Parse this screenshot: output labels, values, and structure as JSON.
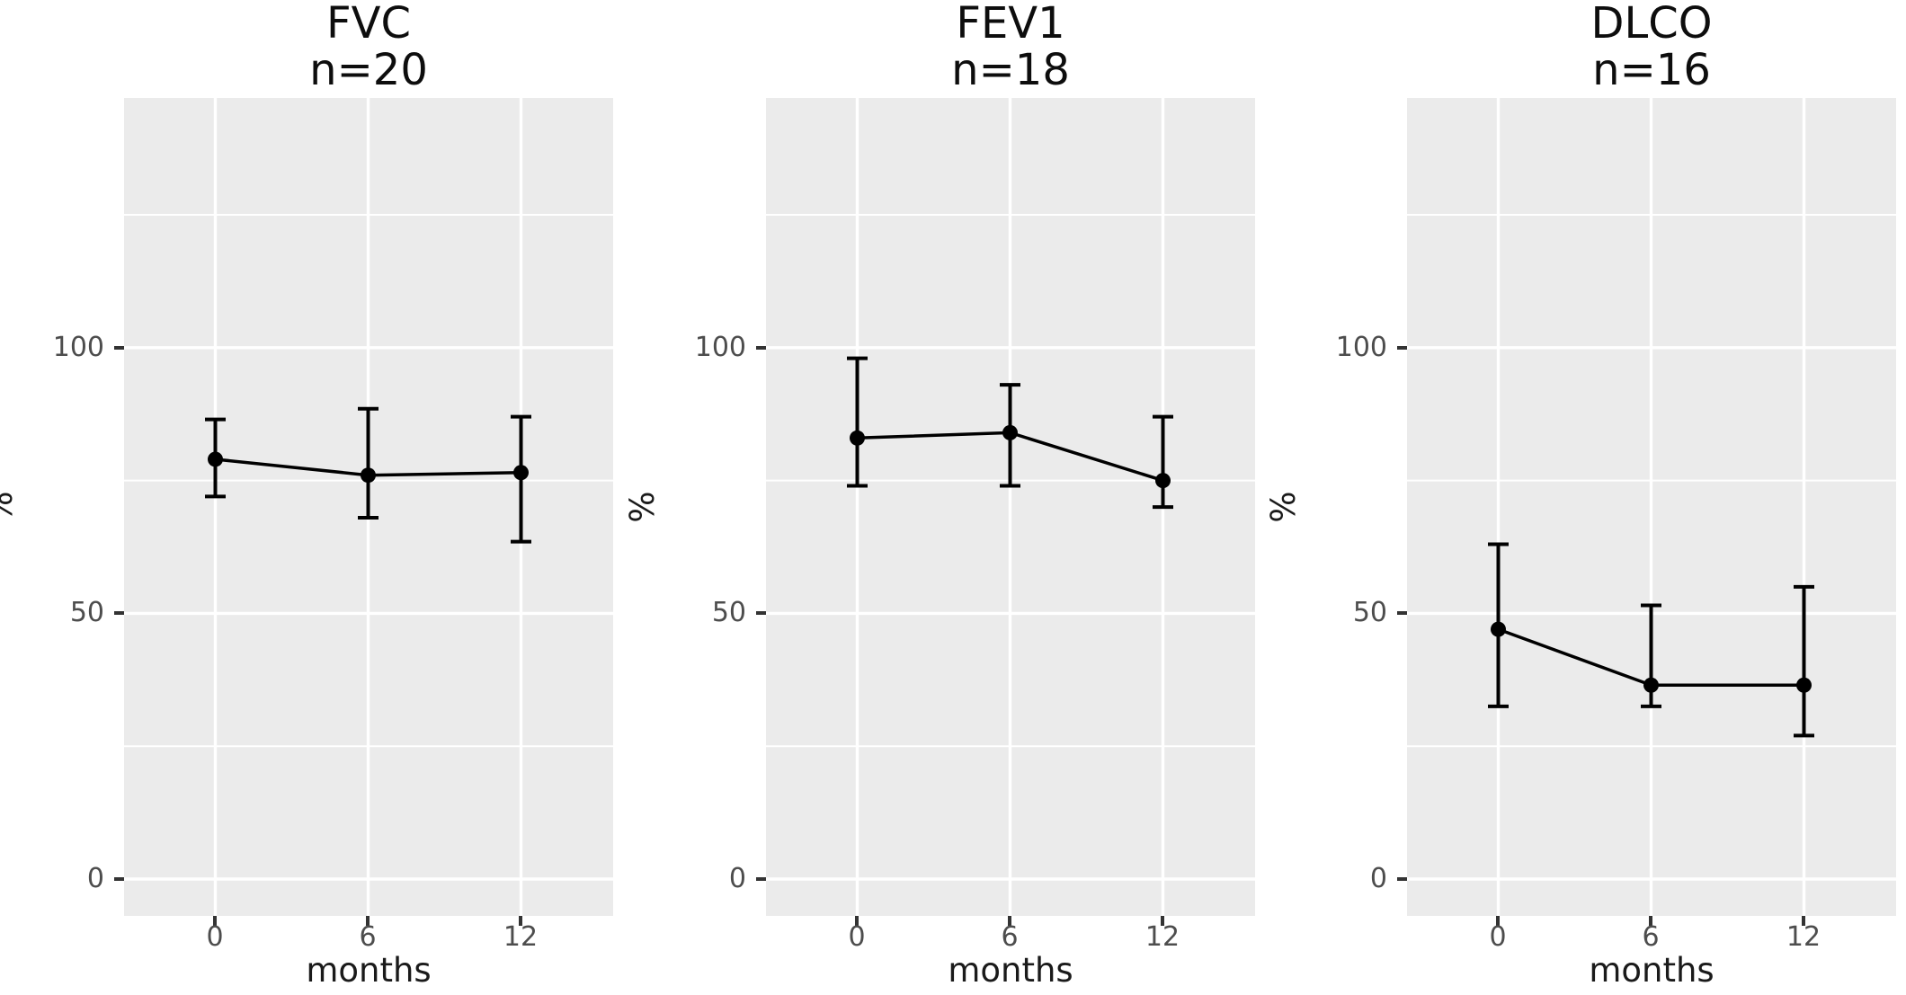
{
  "figure": {
    "background": "#FFFFFF",
    "panel_background": "#EBEBEB",
    "grid_color": "#FFFFFF",
    "series_color": "#000000",
    "axis_text_color": "#4D4D4D",
    "axis_title_color": "#1A1A1A",
    "tick_mark_color": "#333333"
  },
  "chart_data": {
    "type": "line",
    "description": "Three side-by-side panels of mean percent values with error bars over time",
    "x": [
      0,
      6,
      12
    ],
    "xlabel": "months",
    "ylabel": "%",
    "x_tick_labels": [
      "0",
      "6",
      "12"
    ],
    "y_tick_labels": [
      "0",
      "50",
      "100"
    ],
    "y_major_gridlines": [
      0,
      50,
      100
    ],
    "y_minor_gridlines": [
      25,
      75,
      125
    ],
    "ylim": [
      -7,
      147
    ],
    "xlim": [
      -3.6,
      15.6
    ],
    "grid": "on",
    "legend_position": "none",
    "panels": [
      {
        "title": "FVC",
        "subtitle": "n=20",
        "means": [
          79,
          76,
          76.5
        ],
        "lower": [
          72,
          68,
          63.5
        ],
        "upper": [
          86.5,
          88.5,
          87
        ]
      },
      {
        "title": "FEV1",
        "subtitle": "n=18",
        "means": [
          83,
          84,
          75
        ],
        "lower": [
          74,
          74,
          70
        ],
        "upper": [
          98,
          93,
          87
        ]
      },
      {
        "title": "DLCO",
        "subtitle": "n=16",
        "means": [
          47,
          36.5,
          36.5
        ],
        "lower": [
          32.5,
          32.5,
          27
        ],
        "upper": [
          63,
          51.5,
          55
        ]
      }
    ]
  }
}
